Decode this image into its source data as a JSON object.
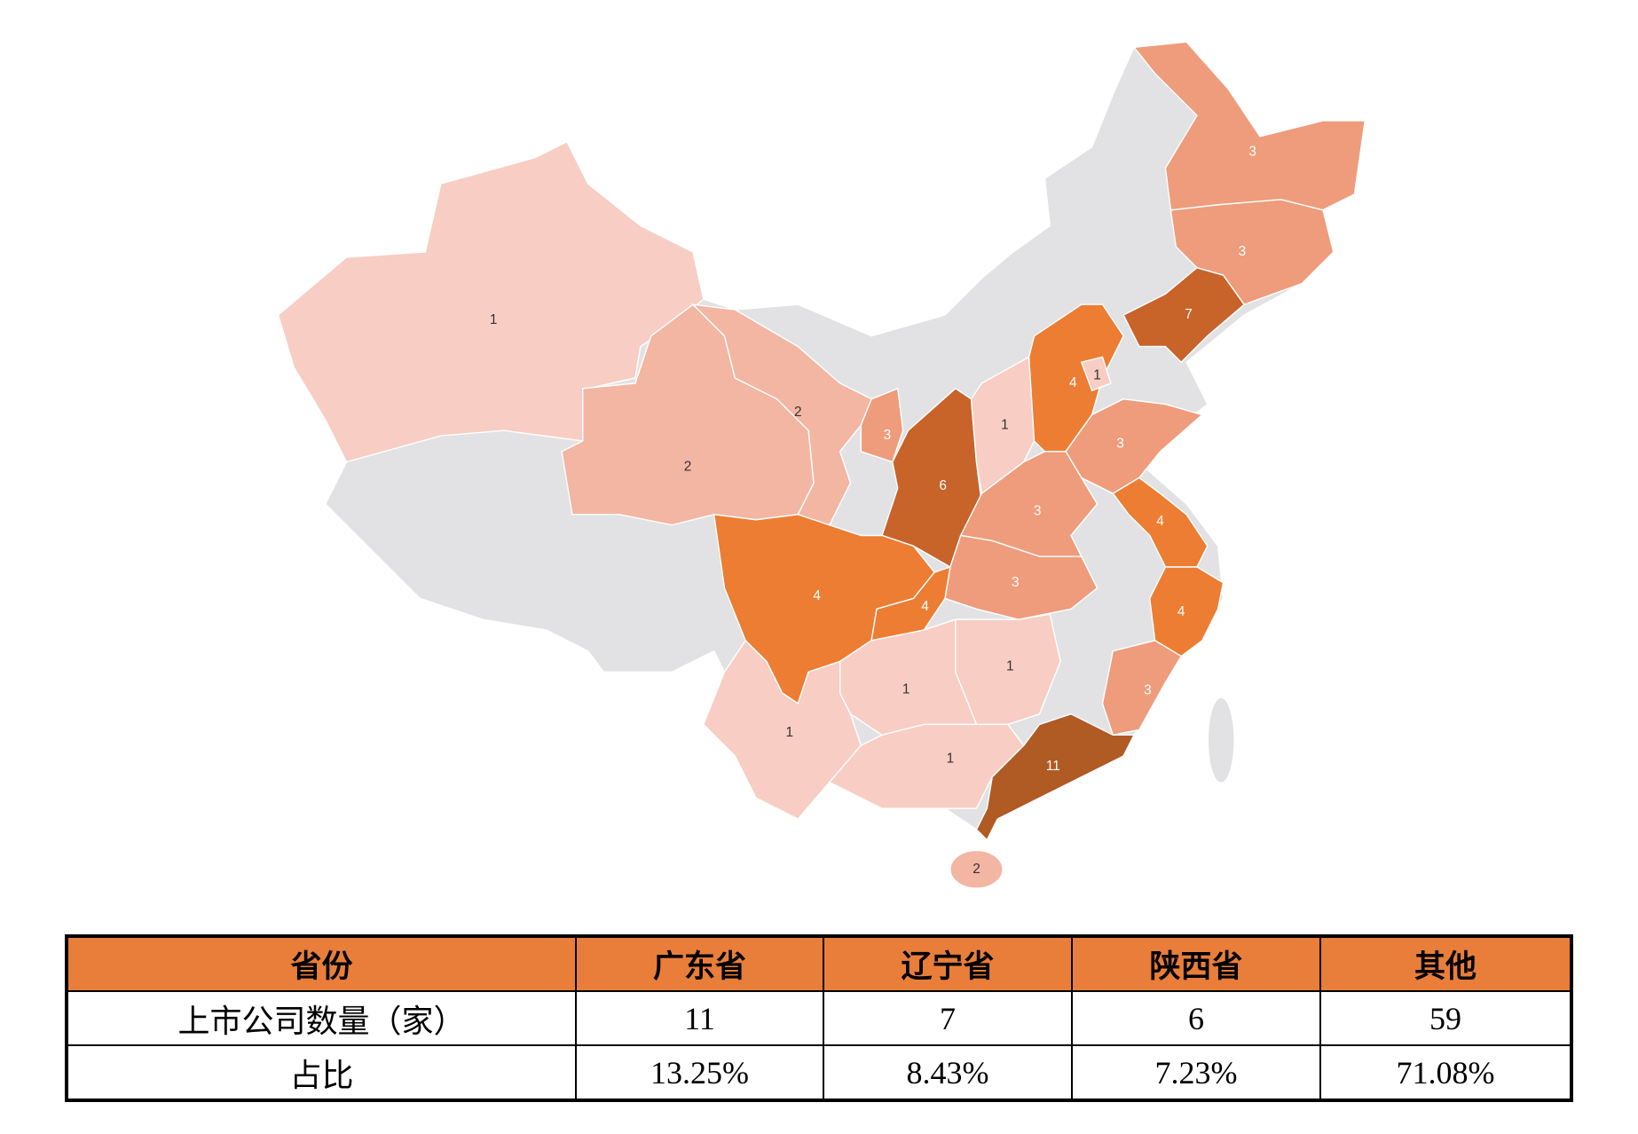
{
  "map": {
    "regions": [
      {
        "value": 1,
        "color": "#f8cdc3"
      },
      {
        "value": 2,
        "color": "#f3b6a2"
      },
      {
        "value": 2,
        "color": "#f3b6a2"
      },
      {
        "value": 3,
        "color": "#ee9c7c"
      },
      {
        "value": 6,
        "color": "#c8632a"
      },
      {
        "value": 1,
        "color": "#f8cdc3"
      },
      {
        "value": 4,
        "color": "#ec7d33"
      },
      {
        "value": 1,
        "color": "#f8cdc3"
      },
      {
        "value": 7,
        "color": "#c8632a"
      },
      {
        "value": 3,
        "color": "#ee9c7c"
      },
      {
        "value": 3,
        "color": "#ee9c7c"
      },
      {
        "value": 3,
        "color": "#ee9c7c"
      },
      {
        "value": 3,
        "color": "#ee9c7c"
      },
      {
        "value": 4,
        "color": "#ec7d33"
      },
      {
        "value": 3,
        "color": "#ee9c7c"
      },
      {
        "value": 4,
        "color": "#ec7d33"
      },
      {
        "value": 4,
        "color": "#ec7d33"
      },
      {
        "value": 4,
        "color": "#ec7d33"
      },
      {
        "value": 1,
        "color": "#f8cdc3"
      },
      {
        "value": 1,
        "color": "#f8cdc3"
      },
      {
        "value": 1,
        "color": "#f8cdc3"
      },
      {
        "value": 1,
        "color": "#f8cdc3"
      },
      {
        "value": 3,
        "color": "#ee9c7c"
      },
      {
        "value": 11,
        "color": "#b05a24"
      },
      {
        "value": 2,
        "color": "#f3b6a2"
      }
    ]
  },
  "table": {
    "header": [
      "省份",
      "广东省",
      "辽宁省",
      "陕西省",
      "其他"
    ],
    "rows": [
      [
        "上市公司数量（家）",
        "11",
        "7",
        "6",
        "59"
      ],
      [
        "占比",
        "13.25%",
        "8.43%",
        "7.23%",
        "71.08%"
      ]
    ]
  }
}
